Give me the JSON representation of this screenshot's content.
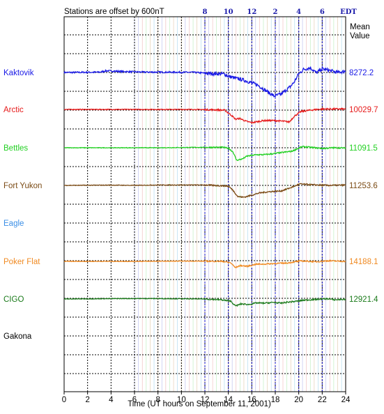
{
  "chart_data": {
    "type": "line",
    "header_note": "Stations are offset by  600nT",
    "xlabel": "Time (UT hours on September 11, 2001)",
    "xlim": [
      0,
      24
    ],
    "x_ticks": [
      "0",
      "2",
      "4",
      "6",
      "8",
      "10",
      "12",
      "14",
      "16",
      "18",
      "20",
      "22",
      "24"
    ],
    "top_axis": {
      "ticks": [
        {
          "label": "8",
          "ut": 12
        },
        {
          "label": "10",
          "ut": 14
        },
        {
          "label": "12",
          "ut": 16
        },
        {
          "label": "2",
          "ut": 18
        },
        {
          "label": "4",
          "ut": 20
        },
        {
          "label": "6",
          "ut": 22
        },
        {
          "label": "EDT",
          "ut": 24
        }
      ]
    },
    "mean_value_header": [
      "Mean",
      "Value"
    ],
    "grid": true,
    "series": [
      {
        "name": "Kaktovik",
        "mean_value": "8272.2",
        "color": "#1a1ae6",
        "noise": 0.55,
        "points": [
          [
            0,
            0
          ],
          [
            3,
            0.2
          ],
          [
            3.6,
            1.2
          ],
          [
            5,
            0.7
          ],
          [
            6.5,
            0.3
          ],
          [
            9,
            0.2
          ],
          [
            11,
            0.1
          ],
          [
            12.6,
            -0.8
          ],
          [
            13.6,
            -1
          ],
          [
            14.1,
            -3
          ],
          [
            14.8,
            -4.5
          ],
          [
            15.3,
            -5.4
          ],
          [
            16,
            -7.5
          ],
          [
            16.5,
            -9
          ],
          [
            17.2,
            -13
          ],
          [
            17.9,
            -17
          ],
          [
            18.5,
            -15.5
          ],
          [
            19.3,
            -10
          ],
          [
            19.6,
            -7
          ],
          [
            20,
            -1
          ],
          [
            20.4,
            2.2
          ],
          [
            21,
            3.4
          ],
          [
            21.5,
            -0.3
          ],
          [
            22,
            2.6
          ],
          [
            22.7,
            1.3
          ],
          [
            23.3,
            0
          ],
          [
            24,
            1
          ]
        ]
      },
      {
        "name": "Arctic",
        "mean_value": "10029.7",
        "color": "#e61a1a",
        "noise": 0.25,
        "points": [
          [
            0,
            0
          ],
          [
            6,
            0
          ],
          [
            11,
            0
          ],
          [
            13,
            -0.3
          ],
          [
            13.7,
            -0.6
          ],
          [
            14.3,
            -4.5
          ],
          [
            14.6,
            -7
          ],
          [
            15,
            -6.5
          ],
          [
            15.5,
            -8.5
          ],
          [
            16,
            -9.5
          ],
          [
            17,
            -8
          ],
          [
            18,
            -8
          ],
          [
            18.7,
            -8.5
          ],
          [
            19.2,
            -9
          ],
          [
            19.6,
            -5
          ],
          [
            20.2,
            -1.5
          ],
          [
            21,
            -0.5
          ],
          [
            22,
            0.3
          ],
          [
            24,
            0.3
          ]
        ]
      },
      {
        "name": "Bettles",
        "mean_value": "11091.5",
        "color": "#22d022",
        "noise": 0.22,
        "points": [
          [
            0,
            0
          ],
          [
            8,
            0
          ],
          [
            11.5,
            0.3
          ],
          [
            13.5,
            0.3
          ],
          [
            14,
            -0.3
          ],
          [
            14.4,
            -3
          ],
          [
            14.7,
            -9
          ],
          [
            15.2,
            -8
          ],
          [
            15.6,
            -6
          ],
          [
            16.4,
            -5
          ],
          [
            17,
            -5
          ],
          [
            17.6,
            -4.5
          ],
          [
            18.5,
            -3.5
          ],
          [
            19.4,
            -2.5
          ],
          [
            20.3,
            0.8
          ],
          [
            21,
            0.3
          ],
          [
            22,
            -0.5
          ],
          [
            23,
            0
          ],
          [
            24,
            -0.2
          ]
        ]
      },
      {
        "name": "Fort Yukon",
        "mean_value": "11253.6",
        "color": "#7a4a14",
        "noise": 0.22,
        "points": [
          [
            0,
            0
          ],
          [
            4,
            0.2
          ],
          [
            6,
            0
          ],
          [
            8,
            0.3
          ],
          [
            12,
            0.3
          ],
          [
            14,
            -0.5
          ],
          [
            14.4,
            -3.5
          ],
          [
            14.8,
            -8
          ],
          [
            15.3,
            -8.5
          ],
          [
            16,
            -7
          ],
          [
            16.6,
            -5.5
          ],
          [
            17.5,
            -4.5
          ],
          [
            18.5,
            -4
          ],
          [
            19.2,
            -2
          ],
          [
            20.1,
            1
          ],
          [
            21,
            0.5
          ],
          [
            22.5,
            0
          ],
          [
            24,
            0.2
          ]
        ]
      },
      {
        "name": "Eagle",
        "color": "#3a8ee6",
        "noise": 0,
        "points": []
      },
      {
        "name": "Poker Flat",
        "mean_value": "14188.1",
        "color": "#f08a22",
        "noise": 0.2,
        "points": [
          [
            0,
            0
          ],
          [
            6,
            0
          ],
          [
            11,
            0.2
          ],
          [
            13.5,
            0
          ],
          [
            14.2,
            -1
          ],
          [
            14.6,
            -4.5
          ],
          [
            15,
            -3
          ],
          [
            15.6,
            -3.5
          ],
          [
            16.4,
            -2
          ],
          [
            17,
            -2
          ],
          [
            18,
            -1.5
          ],
          [
            19,
            -1.2
          ],
          [
            20.2,
            0.3
          ],
          [
            21.5,
            -0.3
          ],
          [
            22.5,
            0.4
          ],
          [
            24,
            0
          ]
        ]
      },
      {
        "name": "CIGO",
        "mean_value": "12921.4",
        "color": "#1a7a1a",
        "noise": 0.22,
        "points": [
          [
            0,
            0
          ],
          [
            5,
            0.3
          ],
          [
            8,
            0.3
          ],
          [
            12,
            0
          ],
          [
            13.3,
            -0.5
          ],
          [
            14.2,
            -1.5
          ],
          [
            14.6,
            -5
          ],
          [
            15.1,
            -3.5
          ],
          [
            15.7,
            -4
          ],
          [
            16.4,
            -2.8
          ],
          [
            17,
            -3
          ],
          [
            17.8,
            -2.5
          ],
          [
            18.5,
            -3
          ],
          [
            19,
            -2.3
          ],
          [
            19.6,
            -1.8
          ],
          [
            20.5,
            -0.8
          ],
          [
            21.5,
            -0.3
          ],
          [
            22.5,
            0.2
          ],
          [
            23,
            -0.6
          ],
          [
            24,
            -0.2
          ]
        ]
      },
      {
        "name": "Gakona",
        "color": "#000000",
        "noise": 0,
        "points": []
      }
    ]
  }
}
